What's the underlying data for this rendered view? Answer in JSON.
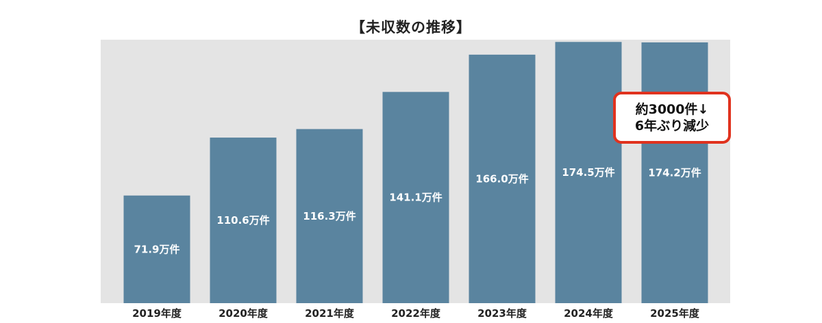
{
  "chart_data": {
    "type": "bar",
    "title": "【未収数の推移】",
    "categories": [
      "2019年度",
      "2020年度",
      "2021年度",
      "2022年度",
      "2023年度",
      "2024年度",
      "2025年度"
    ],
    "values": [
      71.9,
      110.6,
      116.3,
      141.1,
      166.0,
      174.5,
      174.2
    ],
    "data_labels": [
      "71.9万件",
      "110.6万件",
      "116.3万件",
      "141.1万件",
      "166.0万件",
      "174.5万件",
      "174.2万件"
    ],
    "unit": "万件",
    "ylim": [
      0,
      176
    ],
    "grid": false,
    "legend": "none",
    "colors": {
      "bar": "#5a849f",
      "plot_background": "#e4e4e4",
      "bar_label": "#ffffff",
      "tick_label": "#222222",
      "callout_border": "#e0321e"
    },
    "annotation": {
      "line1": "約3000件↓",
      "line2": "6年ぶり減少"
    }
  }
}
